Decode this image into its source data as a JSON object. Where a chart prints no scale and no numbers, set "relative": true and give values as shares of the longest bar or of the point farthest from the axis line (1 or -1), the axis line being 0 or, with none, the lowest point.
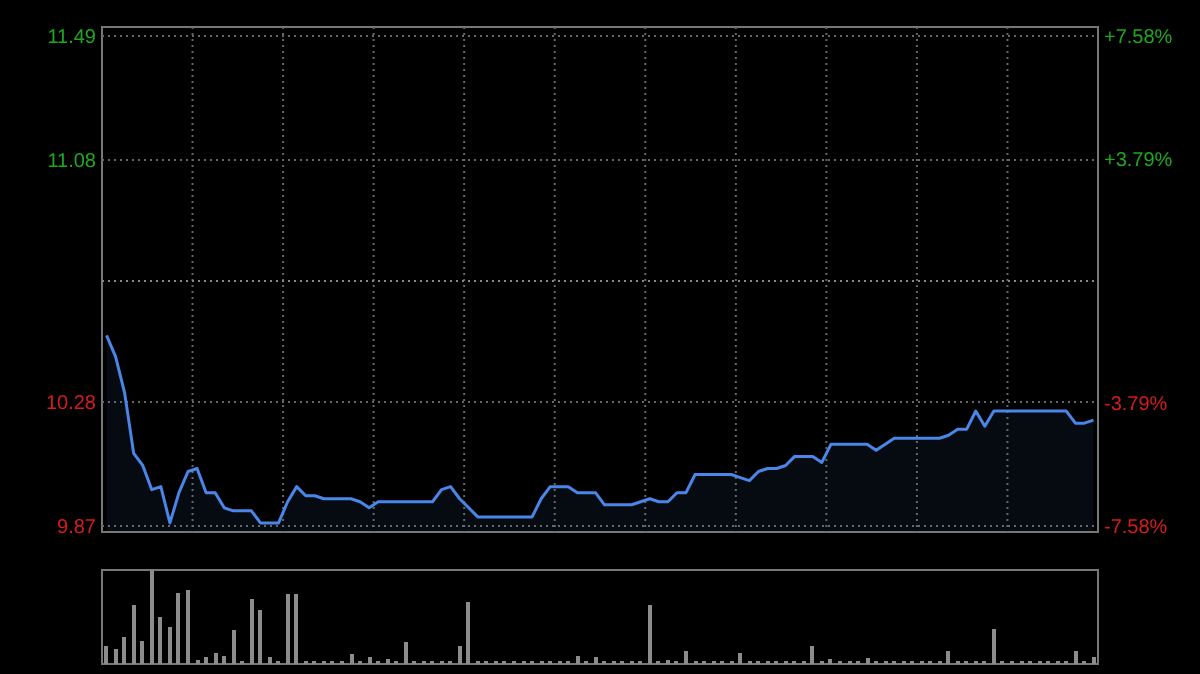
{
  "chart_data": [
    {
      "type": "area",
      "categories": [
        null,
        null,
        null,
        null,
        null,
        null,
        null,
        null,
        null,
        null,
        null,
        null,
        null,
        null,
        null,
        null,
        null,
        null,
        null,
        null,
        null,
        null,
        null,
        null,
        null,
        null,
        null,
        null,
        null,
        null,
        null,
        null,
        null,
        null,
        null,
        null,
        null,
        null,
        null,
        null,
        null,
        null,
        null,
        null,
        null,
        null,
        null,
        null,
        null,
        null,
        null,
        null,
        null,
        null,
        null,
        null,
        null,
        null,
        null,
        null,
        null,
        null,
        null,
        null,
        null,
        null,
        null,
        null,
        null,
        null,
        null,
        null,
        null,
        null,
        null,
        null,
        null,
        null,
        null,
        null,
        null,
        null,
        null,
        null,
        null,
        null,
        null,
        null,
        null,
        null,
        null,
        null,
        null,
        null,
        null,
        null,
        null,
        null,
        null,
        null,
        null,
        null,
        null,
        null,
        null,
        null,
        null,
        null,
        null,
        null
      ],
      "series": [
        {
          "color": "#4a86e8",
          "values": [
            10.5,
            10.43,
            10.31,
            10.11,
            10.07,
            9.99,
            10.0,
            9.88,
            9.98,
            10.05,
            10.06,
            9.98,
            9.98,
            9.93,
            9.92,
            9.92,
            9.92,
            9.88,
            9.88,
            9.88,
            9.95,
            10.0,
            9.97,
            9.97,
            9.96,
            9.96,
            9.96,
            9.96,
            9.95,
            9.93,
            9.95,
            9.95,
            9.95,
            9.95,
            9.95,
            9.95,
            9.95,
            9.99,
            10.0,
            9.96,
            9.93,
            9.9,
            9.9,
            9.9,
            9.9,
            9.9,
            9.9,
            9.9,
            9.96,
            10.0,
            10.0,
            10.0,
            9.98,
            9.98,
            9.98,
            9.94,
            9.94,
            9.94,
            9.94,
            9.95,
            9.96,
            9.95,
            9.95,
            9.98,
            9.98,
            10.04,
            10.04,
            10.04,
            10.04,
            10.04,
            10.03,
            10.02,
            10.05,
            10.06,
            10.06,
            10.07,
            10.1,
            10.1,
            10.1,
            10.08,
            10.14,
            10.14,
            10.14,
            10.14,
            10.14,
            10.12,
            10.14,
            10.16,
            10.16,
            10.16,
            10.16,
            10.16,
            10.16,
            10.17,
            10.19,
            10.19,
            10.25,
            10.2,
            10.25,
            10.25,
            10.25,
            10.25,
            10.25,
            10.25,
            10.25,
            10.25,
            10.25,
            10.21,
            10.21,
            10.22
          ]
        }
      ],
      "ylim": [
        9.85,
        11.52
      ],
      "yticks": [
        11.49,
        11.08,
        10.28,
        9.87
      ],
      "y2lim": [
        -7.77,
        7.87
      ],
      "y2ticks": [
        {
          "value": 7.58,
          "label": "+7.58%"
        },
        {
          "value": 3.79,
          "label": "+3.79%"
        },
        {
          "value": -3.79,
          "label": "-3.79%"
        },
        {
          "value": -7.58,
          "label": "-7.58%"
        }
      ],
      "ref_lines": [
        {
          "axis": "y",
          "value": 10.68,
          "color": "#888888",
          "line_style": "dotted"
        }
      ],
      "grid": true
    },
    {
      "type": "bar",
      "relative": true,
      "color": "#8c8c8c",
      "categories": [
        null,
        null,
        null,
        null,
        null,
        null,
        null,
        null,
        null,
        null,
        null,
        null,
        null,
        null,
        null,
        null,
        null,
        null,
        null,
        null,
        null,
        null,
        null,
        null,
        null,
        null,
        null,
        null,
        null,
        null,
        null,
        null,
        null,
        null,
        null,
        null,
        null,
        null,
        null,
        null,
        null,
        null,
        null,
        null,
        null,
        null,
        null,
        null,
        null,
        null,
        null,
        null,
        null,
        null,
        null,
        null,
        null,
        null,
        null,
        null,
        null,
        null,
        null,
        null,
        null,
        null,
        null,
        null,
        null,
        null,
        null,
        null,
        null,
        null,
        null,
        null,
        null,
        null,
        null,
        null,
        null,
        null,
        null,
        null,
        null,
        null,
        null,
        null,
        null,
        null,
        null,
        null,
        null,
        null,
        null,
        null,
        null,
        null,
        null,
        null,
        null,
        null,
        null,
        null,
        null,
        null,
        null,
        null,
        null,
        null
      ],
      "values": [
        0.19,
        0.16,
        0.29,
        0.63,
        0.25,
        1,
        0.5,
        0.39,
        0.76,
        0.79,
        0.04,
        0.07,
        0.12,
        0.09,
        0.36,
        0.03,
        0.69,
        0.57,
        0.07,
        0.03,
        0.74,
        0.74,
        0.03,
        0.03,
        0.03,
        0.03,
        0.03,
        0.11,
        0.03,
        0.07,
        0.03,
        0.05,
        0.03,
        0.23,
        0.03,
        0.03,
        0.03,
        0.03,
        0.03,
        0.19,
        0.66,
        0.03,
        0.03,
        0.03,
        0.03,
        0.03,
        0.03,
        0.03,
        0.03,
        0.03,
        0.03,
        0.03,
        0.09,
        0.03,
        0.07,
        0.03,
        0.03,
        0.03,
        0.03,
        0.03,
        0.63,
        0.03,
        0.04,
        0.03,
        0.14,
        0.03,
        0.03,
        0.03,
        0.03,
        0.03,
        0.12,
        0.03,
        0.03,
        0.03,
        0.03,
        0.03,
        0.03,
        0.03,
        0.19,
        0.03,
        0.05,
        0.03,
        0.03,
        0.03,
        0.06,
        0.03,
        0.03,
        0.03,
        0.03,
        0.03,
        0.03,
        0.03,
        0.03,
        0.14,
        0.03,
        0.03,
        0.03,
        0.03,
        0.37,
        0.03,
        0.03,
        0.03,
        0.03,
        0.03,
        0.03,
        0.03,
        0.03,
        0.14,
        0.03,
        0.07
      ]
    }
  ]
}
